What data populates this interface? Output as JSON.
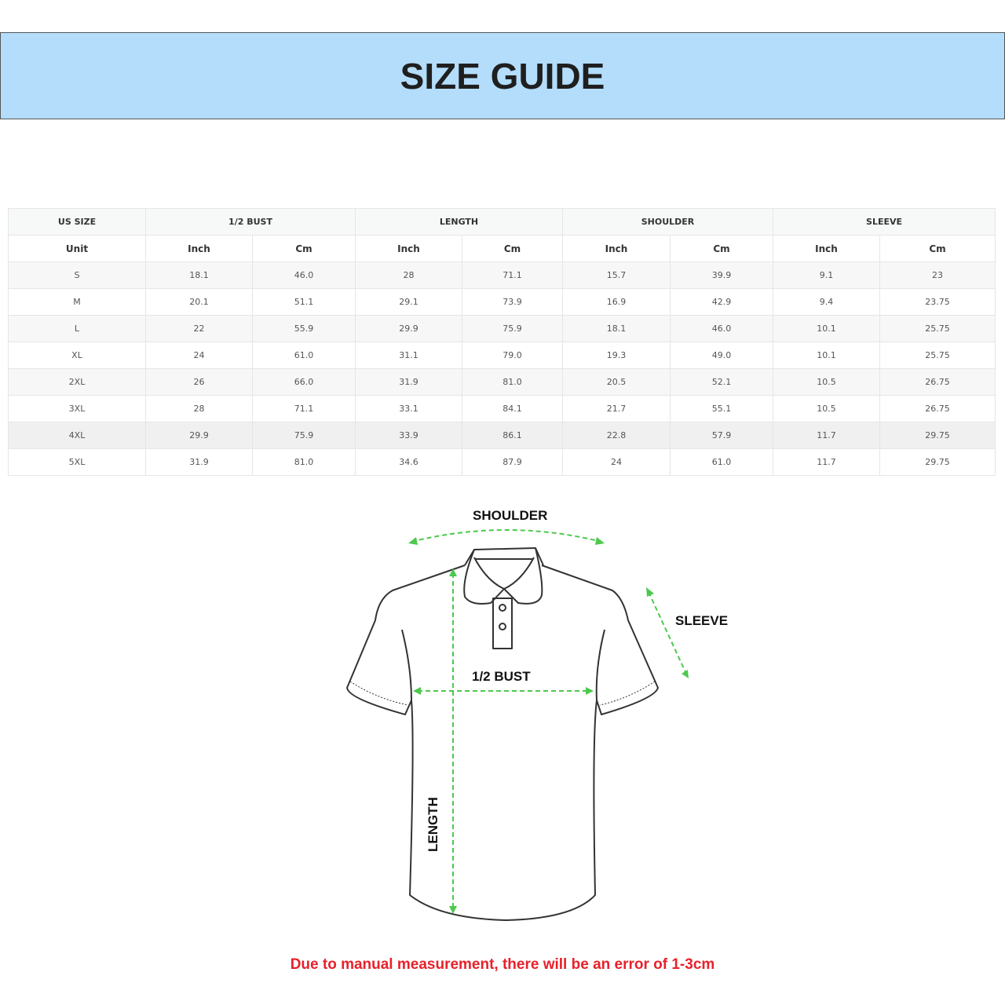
{
  "title": "SIZE GUIDE",
  "table": {
    "group_headers": [
      "US SIZE",
      "1/2 BUST",
      "LENGTH",
      "SHOULDER",
      "SLEEVE"
    ],
    "unit_row": [
      "Unit",
      "Inch",
      "Cm",
      "Inch",
      "Cm",
      "Inch",
      "Cm",
      "Inch",
      "Cm"
    ],
    "rows": [
      [
        "S",
        "18.1",
        "46.0",
        "28",
        "71.1",
        "15.7",
        "39.9",
        "9.1",
        "23"
      ],
      [
        "M",
        "20.1",
        "51.1",
        "29.1",
        "73.9",
        "16.9",
        "42.9",
        "9.4",
        "23.75"
      ],
      [
        "L",
        "22",
        "55.9",
        "29.9",
        "75.9",
        "18.1",
        "46.0",
        "10.1",
        "25.75"
      ],
      [
        "XL",
        "24",
        "61.0",
        "31.1",
        "79.0",
        "19.3",
        "49.0",
        "10.1",
        "25.75"
      ],
      [
        "2XL",
        "26",
        "66.0",
        "31.9",
        "81.0",
        "20.5",
        "52.1",
        "10.5",
        "26.75"
      ],
      [
        "3XL",
        "28",
        "71.1",
        "33.1",
        "84.1",
        "21.7",
        "55.1",
        "10.5",
        "26.75"
      ],
      [
        "4XL",
        "29.9",
        "75.9",
        "33.9",
        "86.1",
        "22.8",
        "57.9",
        "11.7",
        "29.75"
      ],
      [
        "5XL",
        "31.9",
        "81.0",
        "34.6",
        "87.9",
        "24",
        "61.0",
        "11.7",
        "29.75"
      ]
    ]
  },
  "diagram": {
    "shoulder_label": "SHOULDER",
    "sleeve_label": "SLEEVE",
    "bust_label": "1/2 BUST",
    "length_label": "LENGTH",
    "arrow_color": "#4cc94c"
  },
  "note": "Due to manual measurement, there will be an error of 1-3cm",
  "colors": {
    "banner": "#b3ddfb",
    "note": "#e8212b"
  }
}
